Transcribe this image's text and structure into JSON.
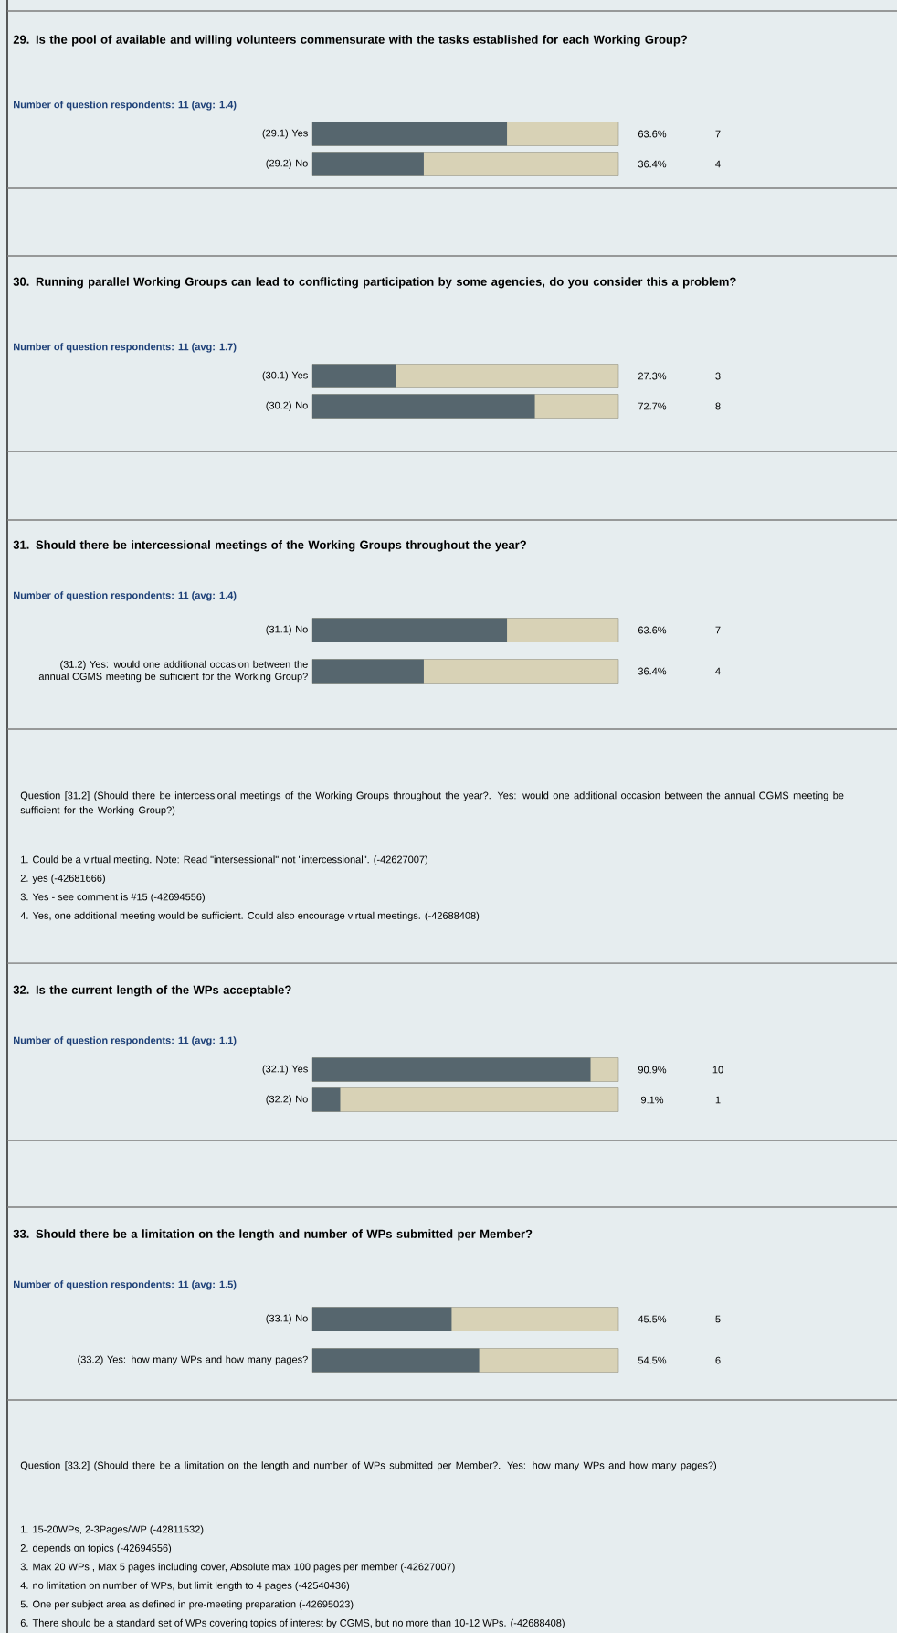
{
  "chart_data": [
    {
      "type": "bar",
      "orientation": "horizontal",
      "title": "29. Is the pool of available and willing volunteers commensurate with the tasks established for each Working Group?",
      "subtitle": "Number of question respondents: 11 (avg: 1.4)",
      "categories": [
        "(29.1) Yes",
        "(29.2) No"
      ],
      "values": [
        63.6,
        36.4
      ],
      "value_labels": [
        "63.6%",
        "36.4%"
      ],
      "annotations": [
        "7",
        "4"
      ],
      "color": "#56666e",
      "xlim": [
        0,
        100
      ],
      "tick_labels": "y"
    },
    {
      "type": "bar",
      "orientation": "horizontal",
      "title": "30. Running parallel Working Groups can lead to conflicting participation by some agencies, do you consider this a problem?",
      "subtitle": "Number of question respondents: 11 (avg: 1.7)",
      "categories": [
        "(30.1) Yes",
        "(30.2) No"
      ],
      "values": [
        27.3,
        72.7
      ],
      "value_labels": [
        "27.3%",
        "72.7%"
      ],
      "annotations": [
        "3",
        "8"
      ],
      "color": "#56666e",
      "xlim": [
        0,
        100
      ],
      "tick_labels": "y"
    },
    {
      "type": "bar",
      "orientation": "horizontal",
      "title": "31. Should there be intercessional meetings of the Working Groups throughout the year?",
      "subtitle": "Number of question respondents: 11 (avg: 1.4)",
      "categories": [
        "(31.1) No",
        "(31.2) Yes: would one additional occasion between the annual CGMS meeting be sufficient for the Working Group?"
      ],
      "values": [
        63.6,
        36.4
      ],
      "value_labels": [
        "63.6%",
        "36.4%"
      ],
      "annotations": [
        "7",
        "4"
      ],
      "color": "#56666e",
      "xlim": [
        0,
        100
      ],
      "tick_labels": "y"
    },
    {
      "type": "other",
      "title": "Question [31.2] (Should there be intercessional meetings of the Working Groups throughout the year?. Yes: would one additional occasion between the annual CGMS meeting be sufficient for the Working Group?)",
      "annotations": [
        "1. Could be a virtual meeting. Note: Read \"intersessional\" not \"intercessional\". (-42627007)",
        "2. yes (-42681666)",
        "3. Yes - see comment is #15 (-42694556)",
        "4. Yes, one additional meeting would be sufficient. Could also encourage virtual meetings. (-42688408)"
      ]
    },
    {
      "type": "bar",
      "orientation": "horizontal",
      "title": "32. Is the current length of the WPs acceptable?",
      "subtitle": "Number of question respondents: 11 (avg: 1.1)",
      "categories": [
        "(32.1) Yes",
        "(32.2) No"
      ],
      "values": [
        90.9,
        9.1
      ],
      "value_labels": [
        "90.9%",
        "9.1%"
      ],
      "annotations": [
        "10",
        "1"
      ],
      "color": "#56666e",
      "xlim": [
        0,
        100
      ],
      "tick_labels": "y"
    },
    {
      "type": "bar",
      "orientation": "horizontal",
      "title": "33. Should there be a limitation on the length and number of WPs submitted per Member?",
      "subtitle": "Number of question respondents: 11 (avg: 1.5)",
      "categories": [
        "(33.1) No",
        "(33.2) Yes: how many WPs and how many pages?"
      ],
      "values": [
        45.5,
        54.5
      ],
      "value_labels": [
        "45.5%",
        "54.5%"
      ],
      "annotations": [
        "5",
        "6"
      ],
      "color": "#56666e",
      "xlim": [
        0,
        100
      ],
      "tick_labels": "y"
    },
    {
      "type": "other",
      "title": "Question [33.2] (Should there be a limitation on the length and number of WPs submitted per Member?. Yes: how many WPs and how many pages?)",
      "annotations": [
        "1. 15-20WPs, 2-3Pages/WP (-42811532)",
        "2. depends on topics (-42694556)",
        "3. Max 20 WPs , Max 5 pages including cover, Absolute max 100 pages per member (-42627007)",
        "4. no limitation on number of WPs, but limit length to 4 pages (-42540436)",
        "5. One per subject area as defined in pre-meeting preparation (-42695023)",
        "6. There should be a standard set of WPs covering topics of interest by CGMS, but no more than 10-12 WPs. (-42688408)"
      ]
    }
  ]
}
